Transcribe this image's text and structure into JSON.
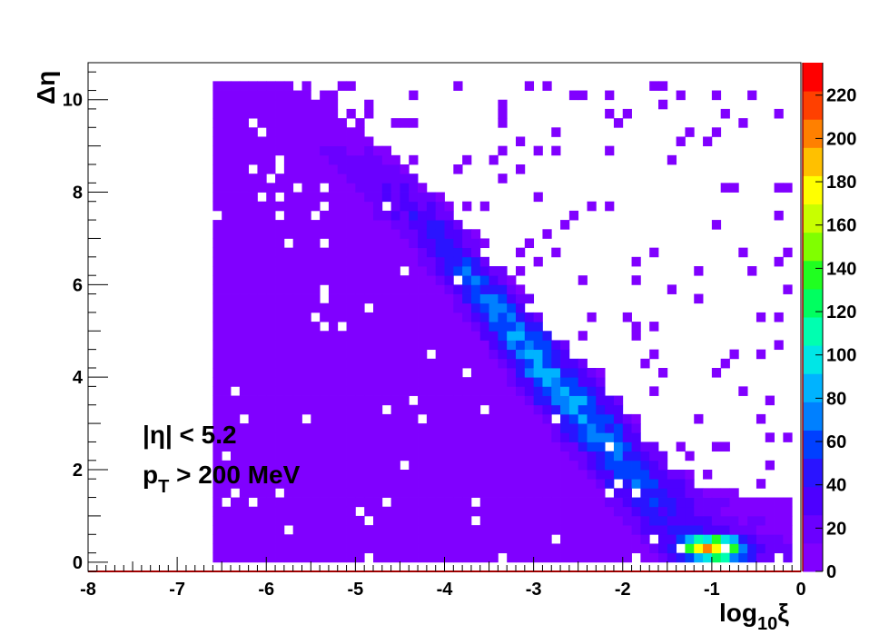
{
  "chart_data": {
    "type": "heatmap",
    "title": "",
    "xlabel": {
      "base": "log",
      "sub": "10",
      "sym": "ξ"
    },
    "ylabel": "Δη",
    "xlim": [
      -8,
      0
    ],
    "ylim": [
      -0.2,
      10.8
    ],
    "x_ticks": [
      "-8",
      "-7",
      "-6",
      "-5",
      "-4",
      "-3",
      "-2",
      "-1",
      "0"
    ],
    "y_ticks": [
      "0",
      "2",
      "4",
      "6",
      "8",
      "10"
    ],
    "z_range": [
      0,
      235
    ],
    "z_ticks": [
      "0",
      "20",
      "40",
      "60",
      "80",
      "100",
      "120",
      "140",
      "160",
      "180",
      "200",
      "220"
    ],
    "palette": [
      "#8000ff",
      "#6a00ff",
      "#4d00ff",
      "#2a14ff",
      "#0040ff",
      "#0080ff",
      "#00b3ff",
      "#00e6e6",
      "#00ffb0",
      "#00ff60",
      "#20ff20",
      "#80ff00",
      "#c8ff00",
      "#ffff00",
      "#ffc000",
      "#ff8000",
      "#ff4000",
      "#ff0000"
    ],
    "band": {
      "description_points": [
        {
          "x": -6.5,
          "y": 10.3
        },
        {
          "x": -5.5,
          "y": 9.2
        },
        {
          "x": -4.5,
          "y": 7.8
        },
        {
          "x": -4.0,
          "y": 6.8
        },
        {
          "x": -3.5,
          "y": 5.6
        },
        {
          "x": -3.0,
          "y": 4.4
        },
        {
          "x": -2.5,
          "y": 3.3
        },
        {
          "x": -2.0,
          "y": 2.2
        },
        {
          "x": -1.5,
          "y": 1.1
        },
        {
          "x": -1.0,
          "y": 0.4
        },
        {
          "x": -0.5,
          "y": 0.2
        }
      ],
      "peak": {
        "x": -1.0,
        "y": 0.3,
        "value": 230
      }
    },
    "annotations": [
      {
        "text": "|η| < 5.2"
      },
      {
        "text_main": "p",
        "text_sub": "T",
        "text_rest": " > 200 MeV"
      }
    ]
  }
}
